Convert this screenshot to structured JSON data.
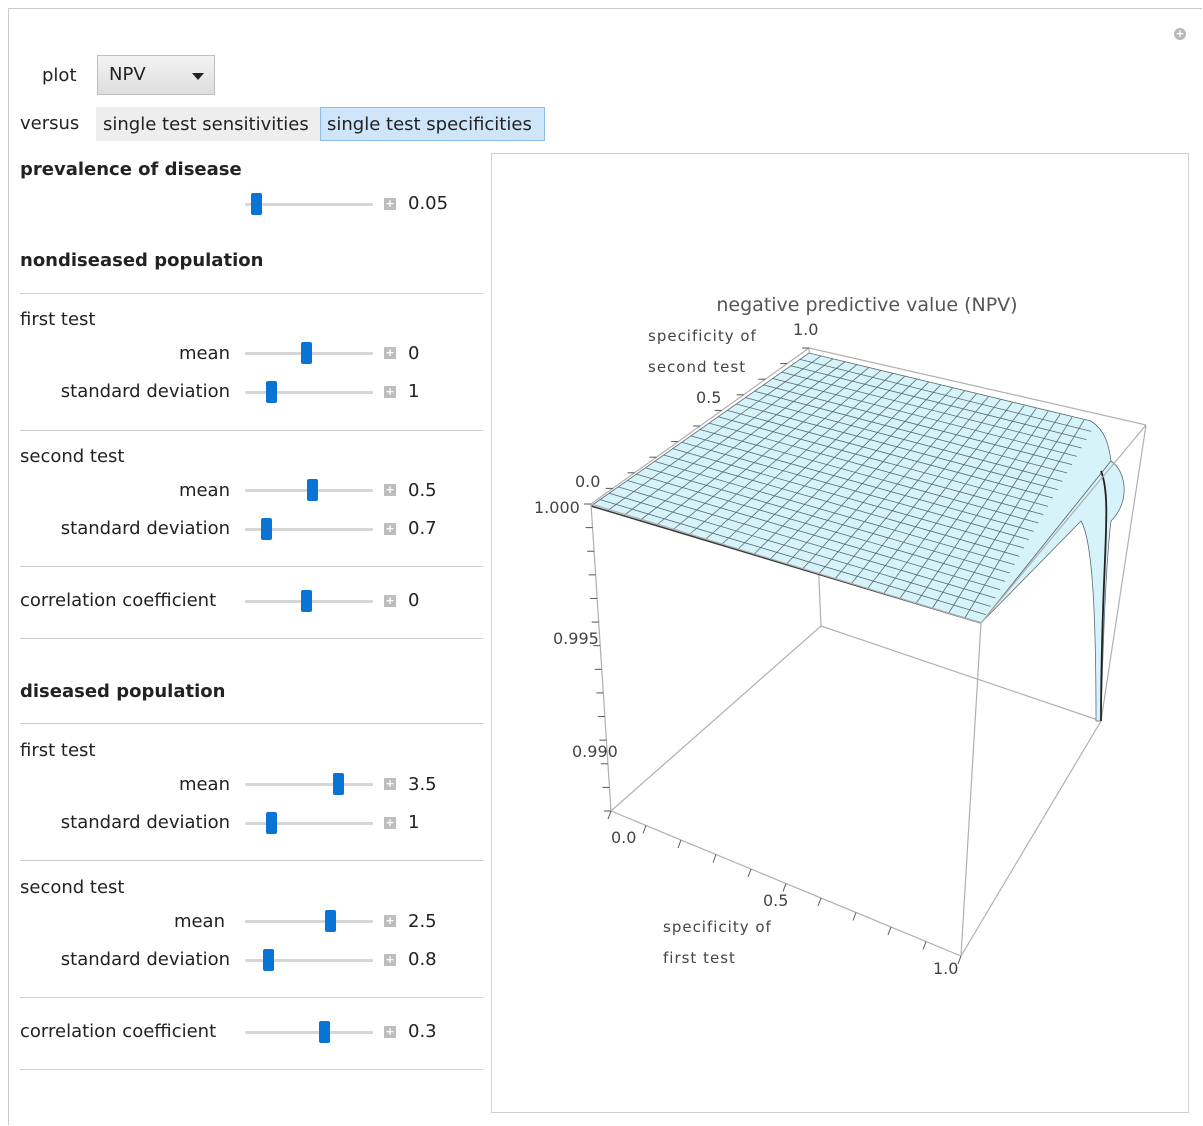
{
  "controls": {
    "plot_label": "plot",
    "plot_value": "NPV",
    "versus_label": "versus",
    "tabs": [
      {
        "label": "single test sensitivities",
        "selected": false
      },
      {
        "label": "single test specificities",
        "selected": true
      }
    ]
  },
  "prevalence": {
    "heading": "prevalence of disease",
    "value": "0.05",
    "level": 0.05
  },
  "nondiseased": {
    "heading": "nondiseased population",
    "first_test": {
      "heading": "first test",
      "mean_label": "mean",
      "mean": "0",
      "mean_level": 0.48,
      "sd_label": "standard deviation",
      "sd": "1",
      "sd_level": 0.18
    },
    "second_test": {
      "heading": "second test",
      "mean_label": "mean",
      "mean": "0.5",
      "mean_level": 0.53,
      "sd_label": "standard deviation",
      "sd": "0.7",
      "sd_level": 0.14
    },
    "correlation": {
      "label": "correlation coefficient",
      "value": "0",
      "level": 0.48
    }
  },
  "diseased": {
    "heading": "diseased population",
    "first_test": {
      "heading": "first test",
      "mean_label": "mean",
      "mean": "3.5",
      "mean_level": 0.75,
      "sd_label": "standard deviation",
      "sd": "1",
      "sd_level": 0.18
    },
    "second_test": {
      "heading": "second test",
      "mean_label": "mean",
      "mean": "2.5",
      "mean_level": 0.68,
      "sd_label": "standard deviation",
      "sd": "0.8",
      "sd_level": 0.15
    },
    "correlation": {
      "label": "correlation coefficient",
      "value": "0.3",
      "level": 0.63
    }
  },
  "chart_data": {
    "type": "surface3d",
    "title": "negative predictive value (NPV)",
    "xlabel_line1": "specificity of",
    "xlabel_line2": "first test",
    "ylabel_line1": "specificity of",
    "ylabel_line2": "second test",
    "x_ticks": [
      "0.0",
      "0.5",
      "1.0"
    ],
    "y_ticks": [
      "0.0",
      "0.5",
      "1.0"
    ],
    "z_ticks": [
      "1.000",
      "0.995",
      "0.990"
    ],
    "x_range": [
      0,
      1
    ],
    "y_range": [
      0,
      1
    ],
    "z_range": [
      0.987,
      1.0
    ],
    "surface_color": "#d6f3fa",
    "mesh_color": "#5a6a72"
  }
}
